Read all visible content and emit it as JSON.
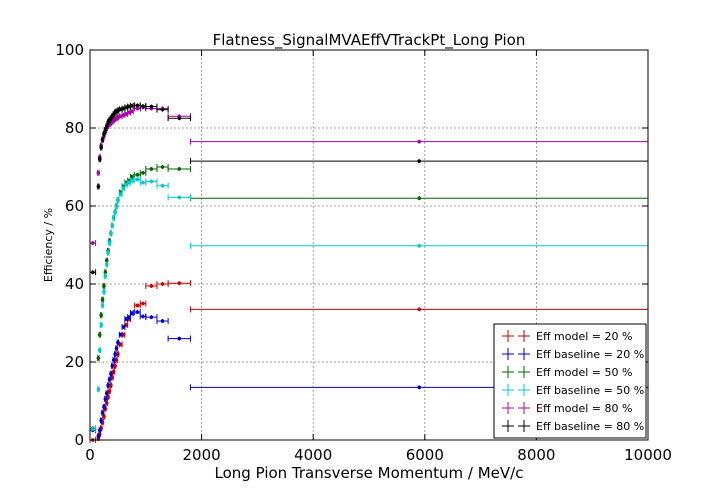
{
  "chart_data": {
    "type": "scatter",
    "title": "Flatness_SignalMVAEffVTrackPt_Long Pion",
    "xlabel": "Long Pion Transverse Momentum / MeV/c",
    "ylabel": "Efficiency / %",
    "xlim": [
      0,
      10000
    ],
    "ylim": [
      0,
      100
    ],
    "xticks": [
      0,
      2000,
      4000,
      6000,
      8000,
      10000
    ],
    "yticks": [
      0,
      20,
      40,
      60,
      80,
      100
    ],
    "grid": true,
    "legend_position": "lower-right",
    "series": [
      {
        "name": "Eff model = 20 %",
        "color": "#cc0000",
        "points": [
          [
            50,
            0
          ],
          [
            150,
            0.5
          ],
          [
            175,
            1.5
          ],
          [
            200,
            3
          ],
          [
            225,
            4.5
          ],
          [
            250,
            6
          ],
          [
            275,
            8
          ],
          [
            300,
            9.5
          ],
          [
            325,
            11
          ],
          [
            350,
            12.5
          ],
          [
            375,
            14
          ],
          [
            400,
            16
          ],
          [
            425,
            17.5
          ],
          [
            450,
            19
          ],
          [
            475,
            20.5
          ],
          [
            500,
            22
          ],
          [
            550,
            24.5
          ],
          [
            600,
            27
          ],
          [
            650,
            29.5
          ],
          [
            700,
            31
          ],
          [
            750,
            32.5
          ],
          [
            850,
            34.5
          ],
          [
            950,
            35
          ],
          [
            1100,
            39.5
          ],
          [
            1300,
            40
          ],
          [
            1600,
            40.2
          ],
          [
            5900,
            33.5
          ]
        ],
        "xerr": [
          50,
          12,
          12,
          12,
          12,
          12,
          12,
          12,
          12,
          12,
          12,
          12,
          12,
          12,
          12,
          12,
          25,
          25,
          25,
          25,
          25,
          50,
          50,
          100,
          100,
          200,
          4100
        ]
      },
      {
        "name": "Eff baseline = 20 %",
        "color": "#0000cc",
        "points": [
          [
            50,
            2.5
          ],
          [
            150,
            1
          ],
          [
            175,
            2.5
          ],
          [
            200,
            5
          ],
          [
            225,
            7
          ],
          [
            250,
            8.5
          ],
          [
            275,
            10.5
          ],
          [
            300,
            12
          ],
          [
            325,
            14
          ],
          [
            350,
            15.5
          ],
          [
            375,
            17
          ],
          [
            400,
            19
          ],
          [
            425,
            20.5
          ],
          [
            450,
            22
          ],
          [
            475,
            23.5
          ],
          [
            500,
            25
          ],
          [
            550,
            27
          ],
          [
            600,
            29
          ],
          [
            650,
            31
          ],
          [
            700,
            31.5
          ],
          [
            750,
            32.5
          ],
          [
            850,
            32.8
          ],
          [
            950,
            31.7
          ],
          [
            1100,
            31.5
          ],
          [
            1300,
            30.5
          ],
          [
            1600,
            26
          ],
          [
            5900,
            13.5
          ]
        ],
        "xerr": [
          50,
          12,
          12,
          12,
          12,
          12,
          12,
          12,
          12,
          12,
          12,
          12,
          12,
          12,
          12,
          12,
          25,
          25,
          25,
          25,
          25,
          50,
          50,
          100,
          100,
          200,
          4100
        ]
      },
      {
        "name": "Eff model = 50 %",
        "color": "#006600",
        "points": [
          [
            50,
            3
          ],
          [
            150,
            21
          ],
          [
            175,
            27
          ],
          [
            200,
            32
          ],
          [
            225,
            36
          ],
          [
            250,
            39.5
          ],
          [
            275,
            43
          ],
          [
            300,
            46
          ],
          [
            325,
            48.5
          ],
          [
            350,
            51
          ],
          [
            375,
            53
          ],
          [
            400,
            55
          ],
          [
            425,
            57
          ],
          [
            450,
            58.5
          ],
          [
            475,
            60
          ],
          [
            500,
            61.5
          ],
          [
            550,
            63.5
          ],
          [
            600,
            65
          ],
          [
            650,
            66
          ],
          [
            700,
            66.5
          ],
          [
            750,
            67.5
          ],
          [
            850,
            68
          ],
          [
            950,
            68.5
          ],
          [
            1100,
            69.5
          ],
          [
            1300,
            70
          ],
          [
            1600,
            69.5
          ],
          [
            5900,
            62
          ]
        ],
        "xerr": [
          50,
          12,
          12,
          12,
          12,
          12,
          12,
          12,
          12,
          12,
          12,
          12,
          12,
          12,
          12,
          12,
          25,
          25,
          25,
          25,
          25,
          50,
          50,
          100,
          100,
          200,
          4100
        ]
      },
      {
        "name": "Eff baseline = 50 %",
        "color": "#00cccc",
        "points": [
          [
            50,
            2.8
          ],
          [
            150,
            13
          ],
          [
            175,
            23
          ],
          [
            200,
            29.5
          ],
          [
            225,
            34.5
          ],
          [
            250,
            38
          ],
          [
            275,
            42
          ],
          [
            300,
            45
          ],
          [
            325,
            48
          ],
          [
            350,
            50.5
          ],
          [
            375,
            53
          ],
          [
            400,
            55
          ],
          [
            425,
            57
          ],
          [
            450,
            58.5
          ],
          [
            475,
            60
          ],
          [
            500,
            61.5
          ],
          [
            550,
            63
          ],
          [
            600,
            64.5
          ],
          [
            650,
            65.5
          ],
          [
            700,
            66
          ],
          [
            750,
            66.5
          ],
          [
            850,
            66.8
          ],
          [
            950,
            66
          ],
          [
            1100,
            66.3
          ],
          [
            1300,
            65.2
          ],
          [
            1600,
            62.2
          ],
          [
            5900,
            49.8
          ]
        ],
        "xerr": [
          50,
          12,
          12,
          12,
          12,
          12,
          12,
          12,
          12,
          12,
          12,
          12,
          12,
          12,
          12,
          12,
          25,
          25,
          25,
          25,
          25,
          50,
          50,
          100,
          100,
          200,
          4100
        ]
      },
      {
        "name": "Eff model = 80 %",
        "color": "#aa00aa",
        "points": [
          [
            50,
            50.5
          ],
          [
            150,
            68.5
          ],
          [
            175,
            72.5
          ],
          [
            200,
            75.5
          ],
          [
            225,
            77
          ],
          [
            250,
            78
          ],
          [
            275,
            79
          ],
          [
            300,
            80
          ],
          [
            325,
            80.5
          ],
          [
            350,
            81
          ],
          [
            375,
            81.3
          ],
          [
            400,
            81.6
          ],
          [
            425,
            82
          ],
          [
            450,
            82.3
          ],
          [
            475,
            82.5
          ],
          [
            500,
            82.7
          ],
          [
            550,
            83
          ],
          [
            600,
            83.3
          ],
          [
            650,
            83.6
          ],
          [
            700,
            84
          ],
          [
            750,
            84.3
          ],
          [
            850,
            85
          ],
          [
            950,
            85.3
          ],
          [
            1100,
            85
          ],
          [
            1300,
            85
          ],
          [
            1600,
            83
          ],
          [
            5900,
            76.5
          ]
        ],
        "xerr": [
          50,
          12,
          12,
          12,
          12,
          12,
          12,
          12,
          12,
          12,
          12,
          12,
          12,
          12,
          12,
          12,
          25,
          25,
          25,
          25,
          25,
          50,
          50,
          100,
          100,
          200,
          4100
        ]
      },
      {
        "name": "Eff baseline = 80 %",
        "color": "#000000",
        "points": [
          [
            50,
            43
          ],
          [
            150,
            65
          ],
          [
            175,
            72
          ],
          [
            200,
            75
          ],
          [
            225,
            77
          ],
          [
            250,
            78.5
          ],
          [
            275,
            79.5
          ],
          [
            300,
            80.5
          ],
          [
            325,
            81.5
          ],
          [
            350,
            82
          ],
          [
            375,
            82.5
          ],
          [
            400,
            83
          ],
          [
            425,
            83.5
          ],
          [
            450,
            84
          ],
          [
            475,
            84.2
          ],
          [
            500,
            84.5
          ],
          [
            550,
            84.8
          ],
          [
            600,
            85
          ],
          [
            650,
            85.3
          ],
          [
            700,
            85.5
          ],
          [
            750,
            85.7
          ],
          [
            850,
            85.8
          ],
          [
            950,
            85.6
          ],
          [
            1100,
            85.5
          ],
          [
            1300,
            84.7
          ],
          [
            1600,
            82.5
          ],
          [
            5900,
            71.5
          ]
        ],
        "xerr": [
          50,
          12,
          12,
          12,
          12,
          12,
          12,
          12,
          12,
          12,
          12,
          12,
          12,
          12,
          12,
          12,
          25,
          25,
          25,
          25,
          25,
          50,
          50,
          100,
          100,
          200,
          4100
        ]
      }
    ]
  }
}
